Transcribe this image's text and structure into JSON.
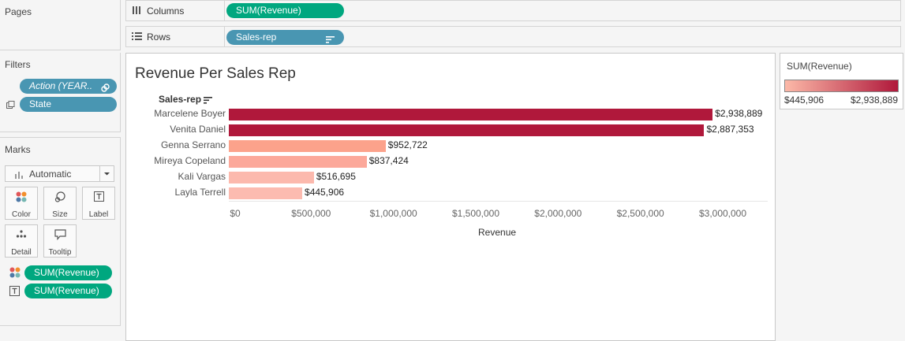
{
  "pages": {
    "title": "Pages"
  },
  "columns_shelf": {
    "label": "Columns",
    "pill": "SUM(Revenue)"
  },
  "rows_shelf": {
    "label": "Rows",
    "pill": "Sales-rep"
  },
  "filters": {
    "title": "Filters",
    "items": [
      {
        "label": "Action (YEAR.."
      },
      {
        "label": "State"
      }
    ]
  },
  "marks": {
    "title": "Marks",
    "type_select": "Automatic",
    "cards": [
      {
        "label": "Color",
        "icon": "color-dots-icon"
      },
      {
        "label": "Size",
        "icon": "size-icon"
      },
      {
        "label": "Label",
        "icon": "label-icon"
      },
      {
        "label": "Detail",
        "icon": "detail-icon"
      },
      {
        "label": "Tooltip",
        "icon": "tooltip-icon"
      }
    ],
    "fields": [
      {
        "label": "SUM(Revenue)",
        "icon": "color-dots-icon"
      },
      {
        "label": "SUM(Revenue)",
        "icon": "label-icon"
      }
    ]
  },
  "legend": {
    "title": "SUM(Revenue)",
    "min_label": "$445,906",
    "max_label": "$2,938,889",
    "color_low": "#fcb9a8",
    "color_high": "#b0183b"
  },
  "chart": {
    "title": "Revenue Per Sales Rep",
    "row_header": "Sales-rep"
  },
  "chart_data": {
    "type": "bar",
    "orientation": "horizontal",
    "title": "Revenue Per Sales Rep",
    "xlabel": "Revenue",
    "ylabel": "Sales-rep",
    "xlim": [
      0,
      3000000
    ],
    "tick_labels": [
      "$0",
      "$500,000",
      "$1,000,000",
      "$1,500,000",
      "$2,000,000",
      "$2,500,000",
      "$3,000,000"
    ],
    "tick_values": [
      0,
      500000,
      1000000,
      1500000,
      2000000,
      2500000,
      3000000
    ],
    "categories": [
      "Marcelene Boyer",
      "Venita Daniel",
      "Genna Serrano",
      "Mireya Copeland",
      "Kali Vargas",
      "Layla Terrell"
    ],
    "values": [
      2938889,
      2887353,
      952722,
      837424,
      516695,
      445906
    ],
    "value_labels": [
      "$2,938,889",
      "$2,887,353",
      "$952,722",
      "$837,424",
      "$516,695",
      "$445,906"
    ],
    "colors": [
      "#b0183b",
      "#b0183b",
      "#fca28b",
      "#fca89a",
      "#fcb9ad",
      "#fcbbb0"
    ],
    "grid": false
  }
}
